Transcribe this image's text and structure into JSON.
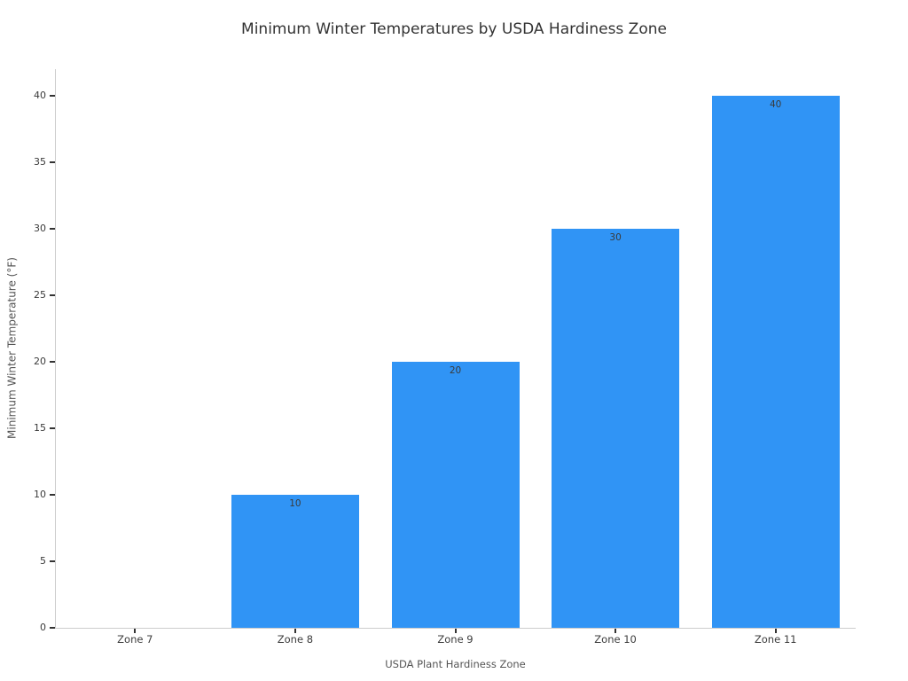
{
  "chart_data": {
    "type": "bar",
    "title": "Minimum Winter Temperatures by USDA Hardiness Zone",
    "xlabel": "USDA Plant Hardiness Zone",
    "ylabel": "Minimum Winter Temperature (°F)",
    "categories": [
      "Zone 7",
      "Zone 8",
      "Zone 9",
      "Zone 10",
      "Zone 11"
    ],
    "values": [
      0,
      10,
      20,
      30,
      40
    ],
    "bar_value_labels": [
      "",
      "10",
      "20",
      "30",
      "40"
    ],
    "yticks": [
      0,
      5,
      10,
      15,
      20,
      25,
      30,
      35,
      40
    ],
    "ylim": [
      0,
      42
    ],
    "grid": false,
    "legend": "none",
    "bar_color": "#3094F5"
  },
  "colors": {
    "background": "#ffffff",
    "bar": "#3094F5",
    "title_text": "#333333",
    "tick_label": "#3b3b3b",
    "tick_mark": "#333333",
    "axis_title": "#555555",
    "spine": "#cccccc",
    "bar_label": "#3a3a3a"
  }
}
